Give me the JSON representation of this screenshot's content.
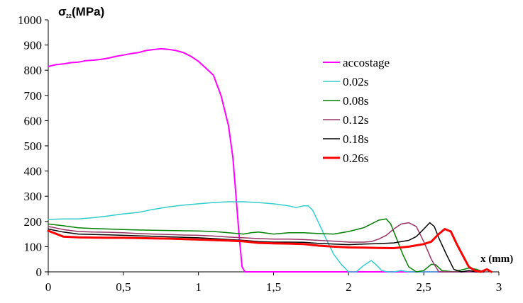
{
  "chart_data": {
    "type": "line",
    "ylabel": {
      "main": "σ",
      "sub": "22",
      "unit": "(MPa)"
    },
    "xlabel": "x (mm)",
    "xlim": [
      0,
      3
    ],
    "ylim": [
      0,
      1000
    ],
    "x_ticks": [
      {
        "value": 0,
        "label": "0"
      },
      {
        "value": 0.5,
        "label": "0,5"
      },
      {
        "value": 1,
        "label": "1"
      },
      {
        "value": 1.5,
        "label": "1,5"
      },
      {
        "value": 2,
        "label": "2"
      },
      {
        "value": 2.5,
        "label": "2,5"
      },
      {
        "value": 3,
        "label": "3"
      }
    ],
    "y_ticks": [
      {
        "value": 0,
        "label": "0"
      },
      {
        "value": 100,
        "label": "100"
      },
      {
        "value": 200,
        "label": "200"
      },
      {
        "value": 300,
        "label": "300"
      },
      {
        "value": 400,
        "label": "400"
      },
      {
        "value": 500,
        "label": "500"
      },
      {
        "value": 600,
        "label": "600"
      },
      {
        "value": 700,
        "label": "700"
      },
      {
        "value": 800,
        "label": "800"
      },
      {
        "value": 900,
        "label": "900"
      },
      {
        "value": 1000,
        "label": "1000"
      }
    ],
    "grid": false,
    "legend_position": "right",
    "series": [
      {
        "name": "accostage",
        "color": "#ff00ff",
        "width": 2,
        "x": [
          0,
          0.05,
          0.1,
          0.15,
          0.2,
          0.25,
          0.3,
          0.35,
          0.4,
          0.45,
          0.5,
          0.55,
          0.6,
          0.65,
          0.7,
          0.75,
          0.8,
          0.85,
          0.9,
          0.95,
          1.0,
          1.05,
          1.1,
          1.15,
          1.2,
          1.23,
          1.25,
          1.27,
          1.29,
          1.31,
          1.35,
          1.5,
          1.7,
          1.9,
          2.1,
          2.3,
          2.5,
          2.7,
          2.9
        ],
        "y": [
          815,
          822,
          825,
          830,
          832,
          838,
          840,
          843,
          848,
          855,
          860,
          866,
          870,
          878,
          882,
          885,
          883,
          878,
          870,
          855,
          835,
          808,
          780,
          700,
          580,
          450,
          300,
          150,
          20,
          0,
          0,
          0,
          0,
          0,
          0,
          0,
          0,
          0,
          0
        ]
      },
      {
        "name": "0.02s",
        "color": "#33cccc",
        "width": 1.5,
        "x": [
          0,
          0.1,
          0.2,
          0.3,
          0.4,
          0.5,
          0.6,
          0.7,
          0.8,
          0.9,
          1.0,
          1.1,
          1.2,
          1.3,
          1.4,
          1.5,
          1.6,
          1.65,
          1.7,
          1.73,
          1.76,
          1.8,
          1.85,
          1.9,
          1.95,
          2.0,
          2.05,
          2.1,
          2.15,
          2.18,
          2.22,
          2.26,
          2.3,
          2.35,
          2.4,
          2.5,
          2.6,
          2.7,
          2.8,
          2.9
        ],
        "y": [
          208,
          210,
          210,
          215,
          222,
          230,
          236,
          248,
          258,
          265,
          270,
          275,
          278,
          278,
          275,
          270,
          262,
          255,
          262,
          262,
          245,
          195,
          130,
          70,
          30,
          0,
          0,
          25,
          45,
          30,
          5,
          0,
          0,
          5,
          0,
          0,
          0,
          0,
          0,
          0
        ]
      },
      {
        "name": "0.08s",
        "color": "#008000",
        "width": 1.5,
        "x": [
          0,
          0.1,
          0.2,
          0.3,
          0.4,
          0.5,
          0.6,
          0.7,
          0.8,
          0.9,
          1.0,
          1.1,
          1.2,
          1.3,
          1.35,
          1.4,
          1.5,
          1.6,
          1.7,
          1.8,
          1.9,
          2.0,
          2.1,
          2.15,
          2.2,
          2.25,
          2.28,
          2.32,
          2.36,
          2.4,
          2.45,
          2.5,
          2.55,
          2.58,
          2.62,
          2.7,
          2.8,
          2.85,
          2.9
        ],
        "y": [
          190,
          183,
          175,
          172,
          170,
          168,
          166,
          165,
          164,
          163,
          162,
          160,
          155,
          150,
          155,
          158,
          150,
          155,
          155,
          152,
          150,
          160,
          175,
          190,
          205,
          210,
          190,
          130,
          70,
          20,
          0,
          5,
          30,
          28,
          5,
          0,
          15,
          10,
          0
        ]
      },
      {
        "name": "0.12s",
        "color": "#993366",
        "width": 1.5,
        "x": [
          0,
          0.1,
          0.2,
          0.3,
          0.4,
          0.5,
          0.6,
          0.7,
          0.8,
          0.9,
          1.0,
          1.1,
          1.2,
          1.3,
          1.4,
          1.5,
          1.6,
          1.7,
          1.8,
          1.9,
          2.0,
          2.1,
          2.15,
          2.2,
          2.25,
          2.3,
          2.35,
          2.4,
          2.45,
          2.5,
          2.55,
          2.6,
          2.7,
          2.8,
          2.9
        ],
        "y": [
          180,
          168,
          160,
          158,
          157,
          155,
          152,
          150,
          148,
          146,
          145,
          142,
          138,
          135,
          132,
          130,
          130,
          128,
          125,
          122,
          118,
          118,
          120,
          130,
          145,
          170,
          190,
          195,
          180,
          120,
          50,
          0,
          0,
          0,
          0
        ]
      },
      {
        "name": "0.18s",
        "color": "#000000",
        "width": 1.5,
        "x": [
          0,
          0.1,
          0.2,
          0.3,
          0.4,
          0.5,
          0.6,
          0.7,
          0.8,
          0.9,
          1.0,
          1.1,
          1.2,
          1.3,
          1.4,
          1.5,
          1.6,
          1.7,
          1.8,
          1.9,
          2.0,
          2.1,
          2.2,
          2.3,
          2.4,
          2.45,
          2.5,
          2.54,
          2.57,
          2.6,
          2.65,
          2.7,
          2.75,
          2.8,
          2.85,
          2.9
        ],
        "y": [
          170,
          158,
          150,
          148,
          147,
          145,
          143,
          141,
          139,
          137,
          135,
          132,
          128,
          125,
          120,
          118,
          118,
          117,
          113,
          110,
          108,
          110,
          112,
          115,
          125,
          140,
          170,
          195,
          180,
          135,
          70,
          10,
          0,
          5,
          0,
          0
        ]
      },
      {
        "name": "0.26s",
        "color": "#ff0000",
        "width": 3,
        "x": [
          0,
          0.1,
          0.2,
          0.3,
          0.4,
          0.5,
          0.6,
          0.7,
          0.8,
          0.9,
          1.0,
          1.1,
          1.2,
          1.3,
          1.4,
          1.5,
          1.6,
          1.7,
          1.8,
          1.9,
          2.0,
          2.1,
          2.2,
          2.3,
          2.4,
          2.5,
          2.55,
          2.6,
          2.64,
          2.68,
          2.72,
          2.76,
          2.8,
          2.84,
          2.88,
          2.92,
          2.95
        ],
        "y": [
          163,
          140,
          137,
          136,
          135,
          135,
          134,
          133,
          132,
          130,
          128,
          126,
          124,
          121,
          115,
          113,
          112,
          110,
          104,
          100,
          97,
          96,
          95,
          94,
          100,
          110,
          120,
          150,
          170,
          160,
          110,
          65,
          20,
          5,
          0,
          10,
          0
        ]
      }
    ]
  }
}
